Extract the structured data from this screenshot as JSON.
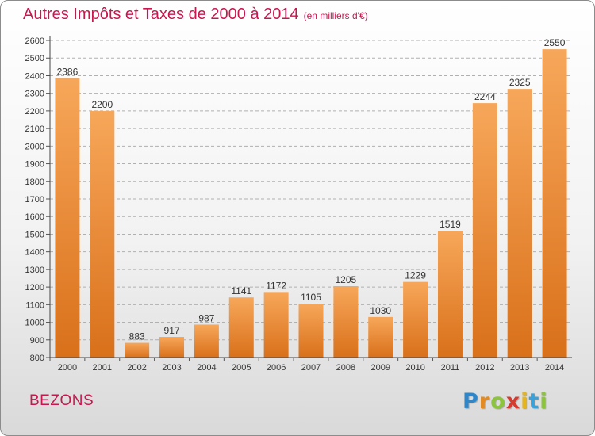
{
  "title": "Autres Impôts et Taxes de 2000 à 2014",
  "subtitle": "(en milliers d'€)",
  "city": "BEZONS",
  "brand": {
    "letters": [
      "P",
      "r",
      "o",
      "x",
      "i",
      "t",
      "i"
    ],
    "colors": [
      "#2f86c8",
      "#e58a1f",
      "#8cc43c",
      "#d63a2f",
      "#e5b51f",
      "#3aa0d8",
      "#8cc43c"
    ]
  },
  "colors": {
    "bar_light": "#f7a75a",
    "bar_dark": "#e0781c",
    "title": "#c8174f",
    "grid": "#b0b0b0"
  },
  "chart_data": {
    "type": "bar",
    "title": "Autres Impôts et Taxes de 2000 à 2014",
    "subtitle": "(en milliers d'€)",
    "categories": [
      "2000",
      "2001",
      "2002",
      "2003",
      "2004",
      "2005",
      "2006",
      "2007",
      "2008",
      "2009",
      "2010",
      "2011",
      "2012",
      "2013",
      "2014"
    ],
    "values": [
      2386,
      2200,
      883,
      917,
      987,
      1141,
      1172,
      1105,
      1205,
      1030,
      1229,
      1519,
      2244,
      2325,
      2550
    ],
    "data_labels": [
      "2386",
      "2200",
      "883",
      "917",
      "987",
      "1141",
      "1172",
      "1105",
      "1205",
      "1030",
      "1229",
      "1519",
      "2244",
      "2325",
      "2550"
    ],
    "yticks": [
      "800",
      "900",
      "1000",
      "1100",
      "1200",
      "1300",
      "1400",
      "1500",
      "1600",
      "1700",
      "1800",
      "1900",
      "2000",
      "2100",
      "2200",
      "2300",
      "2400",
      "2500",
      "2600"
    ],
    "ylim": [
      800,
      2600
    ],
    "xlabel": "",
    "ylabel": "",
    "grid": true
  }
}
